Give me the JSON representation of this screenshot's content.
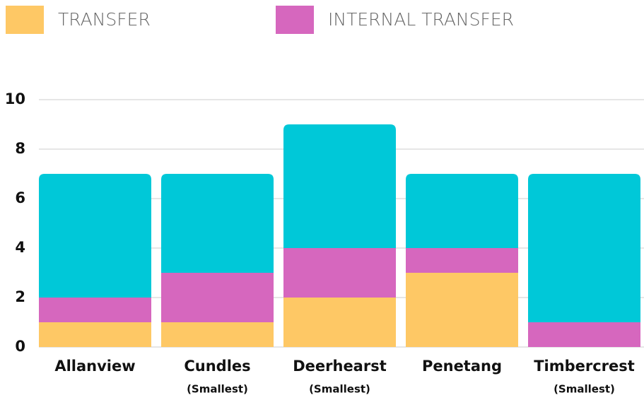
{
  "chart_data": {
    "type": "stacked_bar",
    "categories": [
      "Allanview",
      "Cundles",
      "Deerhearst",
      "Penetang",
      "Timbercrest"
    ],
    "category_notes": [
      null,
      "(Smallest)",
      "(Smallest)",
      null,
      "(Smallest)"
    ],
    "series": [
      {
        "name": "TRANSFER",
        "color": "#fec865",
        "values": [
          1,
          1,
          2,
          3,
          0
        ]
      },
      {
        "name": "INTERNAL TRANSFER",
        "color": "#d667be",
        "values": [
          1,
          2,
          2,
          1,
          1
        ]
      },
      {
        "color": "#00c8d8",
        "values": [
          5,
          4,
          5,
          3,
          6
        ]
      }
    ],
    "ylim": [
      0,
      10
    ],
    "yticks": [
      0,
      2,
      4,
      6,
      8,
      10
    ],
    "grid": true
  }
}
